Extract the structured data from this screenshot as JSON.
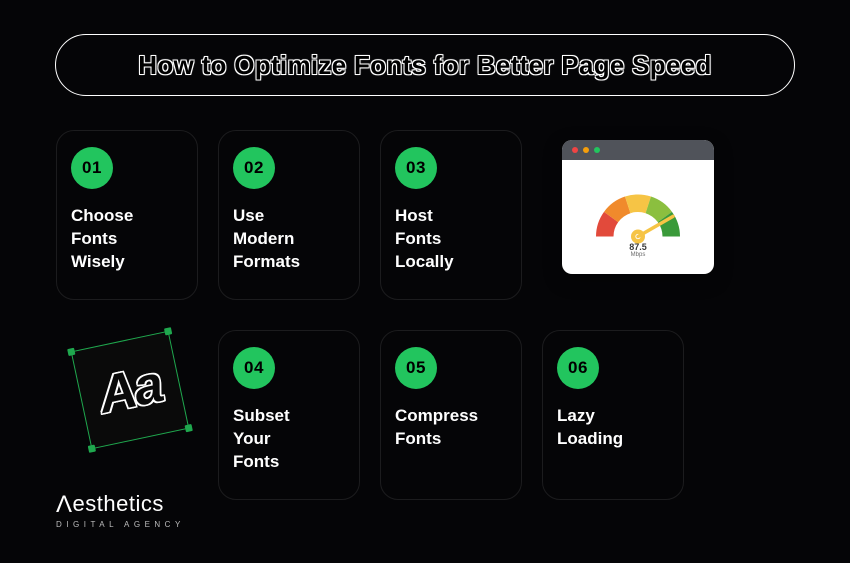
{
  "title": "How to Optimize Fonts for Better Page Speed",
  "accent_color": "#22c55e",
  "background_color": "#050507",
  "card_border_color": "#1c1c1e",
  "text_color": "#ffffff",
  "steps": [
    {
      "num": "01",
      "label": "Choose\nFonts\nWisely"
    },
    {
      "num": "02",
      "label": "Use\nModern\nFormats"
    },
    {
      "num": "03",
      "label": "Host\nFonts\nLocally"
    },
    {
      "num": "04",
      "label": "Subset\nYour\nFonts"
    },
    {
      "num": "05",
      "label": "Compress\nFonts"
    },
    {
      "num": "06",
      "label": "Lazy\nLoading"
    }
  ],
  "gauge": {
    "titlebar_color": "#50535a",
    "dots": [
      "#ef4444",
      "#f59e0b",
      "#22c55e"
    ],
    "segments": [
      "#e24a3b",
      "#f08a2c",
      "#f6c445",
      "#8bbf3f",
      "#3a9a3a"
    ],
    "needle_color": "#f6c445",
    "hub_color": "#f6c445",
    "readout": "87.5",
    "readout_unit": "Mbps"
  },
  "aa": {
    "border_color": "#1fa84e",
    "glyph": "Aa"
  },
  "logo": {
    "main": "esthetics",
    "lambda": "Λ",
    "sub": "DIGITAL AGENCY"
  }
}
